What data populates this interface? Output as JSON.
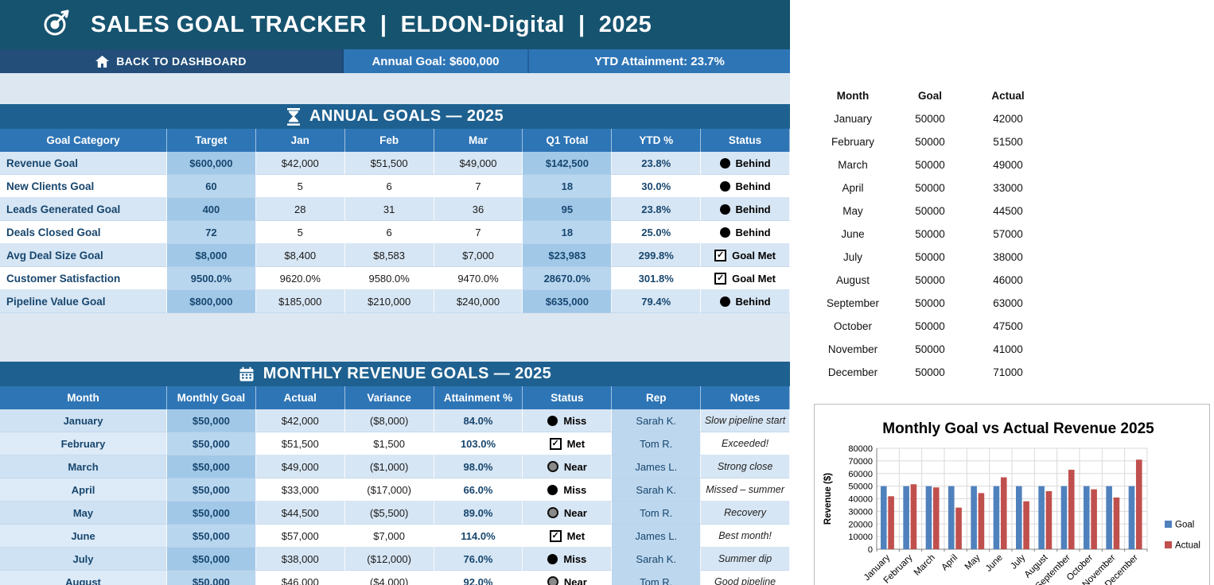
{
  "app": {
    "title": "SALES GOAL TRACKER  |  ELDON-Digital  |  2025",
    "nav": {
      "back_label": "BACK TO DASHBOARD",
      "annual_goal_label": "Annual Goal: $600,000",
      "ytd_label": "YTD Attainment: 23.7%"
    }
  },
  "annual_goals": {
    "title": "ANNUAL GOALS — 2025",
    "columns": [
      "Goal Category",
      "Target",
      "Jan",
      "Feb",
      "Mar",
      "Q1 Total",
      "YTD %",
      "Status"
    ],
    "rows": [
      {
        "category": "Revenue Goal",
        "target": "$600,000",
        "jan": "$42,000",
        "feb": "$51,500",
        "mar": "$49,000",
        "q1": "$142,500",
        "ytd": "23.8%",
        "status": {
          "icon": "dot",
          "label": "Behind"
        }
      },
      {
        "category": "New Clients Goal",
        "target": "60",
        "jan": "5",
        "feb": "6",
        "mar": "7",
        "q1": "18",
        "ytd": "30.0%",
        "status": {
          "icon": "dot",
          "label": "Behind"
        }
      },
      {
        "category": "Leads Generated Goal",
        "target": "400",
        "jan": "28",
        "feb": "31",
        "mar": "36",
        "q1": "95",
        "ytd": "23.8%",
        "status": {
          "icon": "dot",
          "label": "Behind"
        }
      },
      {
        "category": "Deals Closed Goal",
        "target": "72",
        "jan": "5",
        "feb": "6",
        "mar": "7",
        "q1": "18",
        "ytd": "25.0%",
        "status": {
          "icon": "dot",
          "label": "Behind"
        }
      },
      {
        "category": "Avg Deal Size Goal",
        "target": "$8,000",
        "jan": "$8,400",
        "feb": "$8,583",
        "mar": "$7,000",
        "q1": "$23,983",
        "ytd": "299.8%",
        "status": {
          "icon": "check",
          "label": "Goal Met"
        }
      },
      {
        "category": "Customer Satisfaction",
        "target": "9500.0%",
        "jan": "9620.0%",
        "feb": "9580.0%",
        "mar": "9470.0%",
        "q1": "28670.0%",
        "ytd": "301.8%",
        "status": {
          "icon": "check",
          "label": "Goal Met"
        }
      },
      {
        "category": "Pipeline Value Goal",
        "target": "$800,000",
        "jan": "$185,000",
        "feb": "$210,000",
        "mar": "$240,000",
        "q1": "$635,000",
        "ytd": "79.4%",
        "status": {
          "icon": "dot",
          "label": "Behind"
        }
      }
    ]
  },
  "monthly_goals": {
    "title": "MONTHLY REVENUE GOALS — 2025",
    "columns": [
      "Month",
      "Monthly Goal",
      "Actual",
      "Variance",
      "Attainment %",
      "Status",
      "Rep",
      "Notes"
    ],
    "rows": [
      {
        "month": "January",
        "goal": "$50,000",
        "actual": "$42,000",
        "variance": "($8,000)",
        "attainment": "84.0%",
        "status": {
          "icon": "dot",
          "label": "Miss"
        },
        "rep": "Sarah K.",
        "notes": "Slow pipeline start"
      },
      {
        "month": "February",
        "goal": "$50,000",
        "actual": "$51,500",
        "variance": "$1,500",
        "attainment": "103.0%",
        "status": {
          "icon": "check",
          "label": "Met"
        },
        "rep": "Tom R.",
        "notes": "Exceeded!"
      },
      {
        "month": "March",
        "goal": "$50,000",
        "actual": "$49,000",
        "variance": "($1,000)",
        "attainment": "98.0%",
        "status": {
          "icon": "near",
          "label": "Near"
        },
        "rep": "James L.",
        "notes": "Strong close"
      },
      {
        "month": "April",
        "goal": "$50,000",
        "actual": "$33,000",
        "variance": "($17,000)",
        "attainment": "66.0%",
        "status": {
          "icon": "dot",
          "label": "Miss"
        },
        "rep": "Sarah K.",
        "notes": "Missed – summer"
      },
      {
        "month": "May",
        "goal": "$50,000",
        "actual": "$44,500",
        "variance": "($5,500)",
        "attainment": "89.0%",
        "status": {
          "icon": "near",
          "label": "Near"
        },
        "rep": "Tom R.",
        "notes": "Recovery"
      },
      {
        "month": "June",
        "goal": "$50,000",
        "actual": "$57,000",
        "variance": "$7,000",
        "attainment": "114.0%",
        "status": {
          "icon": "check",
          "label": "Met"
        },
        "rep": "James L.",
        "notes": "Best month!"
      },
      {
        "month": "July",
        "goal": "$50,000",
        "actual": "$38,000",
        "variance": "($12,000)",
        "attainment": "76.0%",
        "status": {
          "icon": "dot",
          "label": "Miss"
        },
        "rep": "Sarah K.",
        "notes": "Summer dip"
      },
      {
        "month": "August",
        "goal": "$50,000",
        "actual": "$46,000",
        "variance": "($4,000)",
        "attainment": "92.0%",
        "status": {
          "icon": "near",
          "label": "Near"
        },
        "rep": "Tom R.",
        "notes": "Good pipeline"
      }
    ]
  },
  "side_table": {
    "columns": [
      "Month",
      "Goal",
      "Actual"
    ],
    "rows": [
      [
        "January",
        "50000",
        "42000"
      ],
      [
        "February",
        "50000",
        "51500"
      ],
      [
        "March",
        "50000",
        "49000"
      ],
      [
        "April",
        "50000",
        "33000"
      ],
      [
        "May",
        "50000",
        "44500"
      ],
      [
        "June",
        "50000",
        "57000"
      ],
      [
        "July",
        "50000",
        "38000"
      ],
      [
        "August",
        "50000",
        "46000"
      ],
      [
        "September",
        "50000",
        "63000"
      ],
      [
        "October",
        "50000",
        "47500"
      ],
      [
        "November",
        "50000",
        "41000"
      ],
      [
        "December",
        "50000",
        "71000"
      ]
    ]
  },
  "chart_data": {
    "type": "bar",
    "title": "Monthly Goal vs Actual Revenue 2025",
    "categories": [
      "January",
      "February",
      "March",
      "April",
      "May",
      "June",
      "July",
      "August",
      "September",
      "October",
      "November",
      "December"
    ],
    "series": [
      {
        "name": "Goal",
        "color": "#4f81bd",
        "values": [
          50000,
          50000,
          50000,
          50000,
          50000,
          50000,
          50000,
          50000,
          50000,
          50000,
          50000,
          50000
        ]
      },
      {
        "name": "Actual",
        "color": "#c0504d",
        "values": [
          42000,
          51500,
          49000,
          33000,
          44500,
          57000,
          38000,
          46000,
          63000,
          47500,
          41000,
          71000
        ]
      }
    ],
    "xlabel": "",
    "ylabel": "Revenue ($)",
    "ylim": [
      0,
      80000
    ],
    "ytick": 10000,
    "grid": true,
    "legend_position": "right"
  },
  "colors": {
    "header_bar": "#16536f",
    "nav_dark": "#224e79",
    "accent_blue": "#2e75b6",
    "section_bar": "#1e6190",
    "goal_series": "#4f81bd",
    "actual_series": "#c0504d"
  }
}
